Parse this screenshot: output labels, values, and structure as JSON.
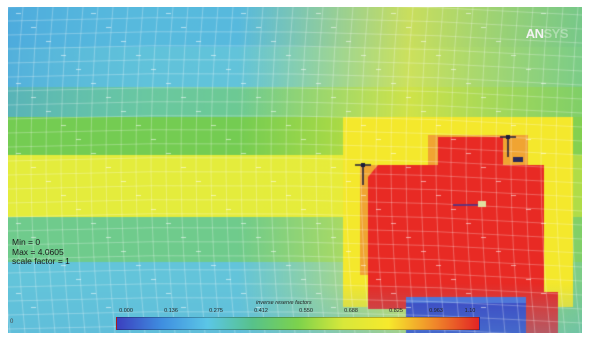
{
  "window": {
    "brand_main": "AN",
    "brand_tail": "SYS"
  },
  "stats": {
    "min": "Min = 0",
    "max": "Max = 4.0605",
    "scale": "scale factor = 1"
  },
  "legend": {
    "title": "inverse reserve factors",
    "ticks": [
      "0.000",
      "0.136",
      "0.275",
      "0.412",
      "0.550",
      "0.688",
      "0.825",
      "0.963",
      "1.10"
    ],
    "colors": [
      "#3b3fbf",
      "#3f8fe0",
      "#5bc6e6",
      "#57c28a",
      "#7cd24c",
      "#d8e83a",
      "#f6e92c",
      "#f08a2a",
      "#e32424"
    ]
  },
  "corner_mark": "0"
}
